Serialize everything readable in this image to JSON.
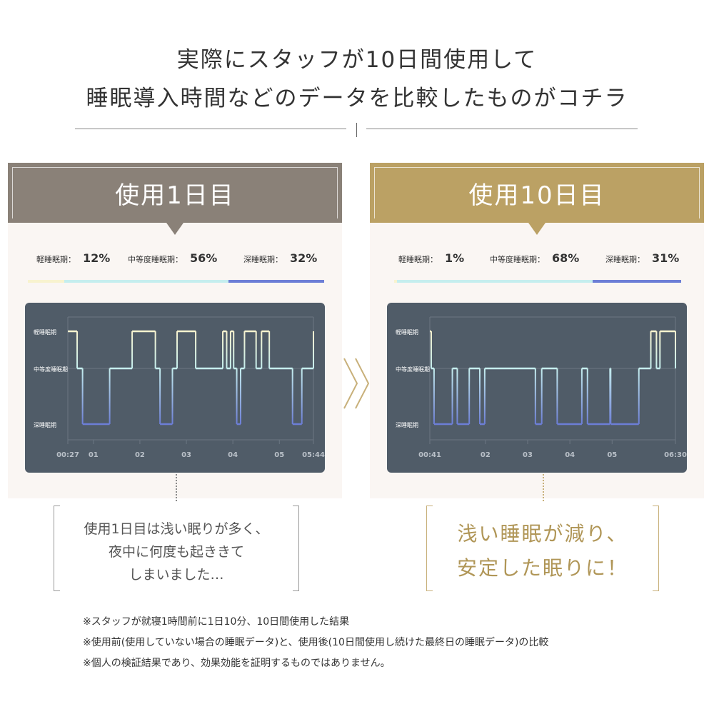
{
  "header": {
    "line1": "実際にスタッフが10日間使用して",
    "line2": "睡眠導入時間などのデータを比較したものがコチラ"
  },
  "colors": {
    "left_banner": "#8a8178",
    "right_banner": "#bba164",
    "light": "#f8f3cf",
    "medium": "#c5eeee",
    "deep": "#6c7ed6",
    "comment_right": "#b09657"
  },
  "panels": [
    {
      "title": "使用1日目",
      "stats": [
        {
          "label": "軽睡眠期：",
          "value": "12%"
        },
        {
          "label": "中等度睡眠期：",
          "value": "56%"
        },
        {
          "label": "深睡眠期：",
          "value": "32%"
        }
      ],
      "comment": [
        "使用1日目は浅い眠りが多く、",
        "夜中に何度も起ききて",
        "しまいました…"
      ]
    },
    {
      "title": "使用10日目",
      "stats": [
        {
          "label": "軽睡眠期：",
          "value": "1%"
        },
        {
          "label": "中等度睡眠期：",
          "value": "68%"
        },
        {
          "label": "深睡眠期：",
          "value": "31%"
        }
      ],
      "comment": [
        "浅い睡眠が減り、",
        "安定した眠りに！"
      ]
    }
  ],
  "chart_data": [
    {
      "type": "line",
      "title": "使用1日目",
      "y_categories": [
        "深睡眠期",
        "中等度睡眠期",
        "軽睡眠期"
      ],
      "x_ticks": [
        "00:27",
        "01",
        "02",
        "03",
        "04",
        "05",
        "05:44"
      ],
      "x_tick_minutes": [
        27,
        60,
        120,
        180,
        240,
        300,
        344
      ],
      "xlim_minutes": [
        27,
        344
      ],
      "stage_share": {
        "軽睡眠期": 12,
        "中等度睡眠期": 56,
        "深睡眠期": 32
      },
      "series": [
        {
          "x_minutes": [
            27,
            39,
            46,
            81,
            110,
            140,
            146,
            162,
            168,
            192,
            227,
            232,
            237,
            241,
            245,
            250,
            255,
            270,
            277,
            287,
            317,
            329,
            344
          ],
          "stage": [
            2,
            1,
            0,
            1,
            2,
            1,
            0,
            1,
            2,
            1,
            2,
            1,
            2,
            1,
            0,
            1,
            2,
            1,
            2,
            1,
            0,
            1,
            2
          ]
        }
      ]
    },
    {
      "type": "line",
      "title": "使用10日目",
      "y_categories": [
        "深睡眠期",
        "中等度睡眠期",
        "軽睡眠期"
      ],
      "x_ticks": [
        "00:41",
        "02",
        "03",
        "04",
        "05",
        "06:30"
      ],
      "x_tick_minutes": [
        41,
        120,
        180,
        240,
        300,
        390
      ],
      "xlim_minutes": [
        41,
        390
      ],
      "stage_share": {
        "軽睡眠期": 1,
        "中等度睡眠期": 68,
        "深睡眠期": 31
      },
      "series": [
        {
          "x_minutes": [
            41,
            43,
            47,
            73,
            80,
            97,
            112,
            119,
            191,
            200,
            222,
            257,
            265,
            297,
            298,
            338,
            355,
            363,
            368,
            390
          ],
          "stage": [
            2,
            1,
            0,
            1,
            0,
            1,
            0,
            1,
            0,
            1,
            0,
            1,
            0,
            1,
            0,
            1,
            2,
            1,
            2,
            1
          ]
        }
      ]
    }
  ],
  "notes": [
    "※スタッフが就寝1時間前に1日10分、10日間使用した結果",
    "※使用前(使用していない場合の睡眠データ)と、使用後(10日間使用し続けた最終日の睡眠データ)の比較",
    "※個人の検証結果であり、効果効能を証明するものではありません。"
  ]
}
